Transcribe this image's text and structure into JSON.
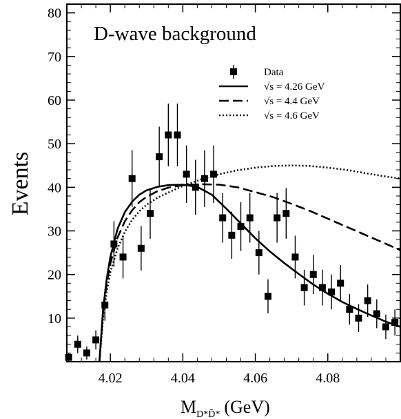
{
  "chart_data": {
    "type": "scatter",
    "title": "D-wave background",
    "xlabel_main": "M",
    "xlabel_subscript": "D*D̄*",
    "xlabel_unit": "(GeV)",
    "ylabel": "Events",
    "xlim": [
      4.008,
      4.1
    ],
    "ylim": [
      0,
      82
    ],
    "xticks": [
      4.02,
      4.04,
      4.06,
      4.08
    ],
    "xtick_labels": [
      "4.02",
      "4.04",
      "4.06",
      "4.08"
    ],
    "yticks": [
      10,
      20,
      30,
      40,
      50,
      60,
      70,
      80
    ],
    "ytick_labels": [
      "10",
      "20",
      "30",
      "40",
      "50",
      "60",
      "70",
      "80"
    ],
    "legend_position": "top-right",
    "data_series": {
      "name": "Data",
      "x": [
        4.0085,
        4.011,
        4.0135,
        4.016,
        4.0185,
        4.021,
        4.0235,
        4.026,
        4.0285,
        4.031,
        4.0335,
        4.036,
        4.0385,
        4.041,
        4.0435,
        4.046,
        4.0485,
        4.051,
        4.0535,
        4.056,
        4.0585,
        4.061,
        4.0635,
        4.066,
        4.0685,
        4.071,
        4.0735,
        4.076,
        4.0785,
        4.081,
        4.0835,
        4.086,
        4.0885,
        4.091,
        4.0935,
        4.096,
        4.0985
      ],
      "y": [
        1,
        4,
        2,
        5,
        13,
        27,
        24,
        42,
        26,
        34,
        47,
        52,
        52,
        43,
        40,
        42,
        43,
        33,
        29,
        31,
        33,
        25,
        15,
        33,
        34,
        24,
        17,
        20,
        17,
        16,
        18,
        12,
        10,
        14,
        11,
        8,
        9
      ],
      "yerr": [
        1,
        2,
        1.5,
        2.2,
        3.6,
        5.2,
        4.9,
        6.5,
        5.1,
        5.8,
        6.9,
        7.2,
        7.2,
        6.6,
        6.3,
        6.5,
        6.6,
        5.7,
        5.4,
        5.6,
        5.7,
        5.0,
        3.9,
        5.7,
        5.8,
        4.9,
        4.1,
        4.5,
        4.1,
        4.0,
        4.2,
        3.5,
        3.2,
        3.7,
        3.3,
        2.8,
        3.0
      ]
    },
    "curves": [
      {
        "name": "√s = 4.26 GeV",
        "style": "solid",
        "x": [
          4.017,
          4.018,
          4.019,
          4.02,
          4.022,
          4.024,
          4.026,
          4.028,
          4.03,
          4.033,
          4.036,
          4.04,
          4.044,
          4.048,
          4.052,
          4.056,
          4.06,
          4.064,
          4.068,
          4.072,
          4.076,
          4.08,
          4.084,
          4.088,
          4.092,
          4.096,
          4.1
        ],
        "y": [
          0,
          12,
          19,
          24,
          30.5,
          34.3,
          36.7,
          38.3,
          39.3,
          40.1,
          40.5,
          40.6,
          40.1,
          38.3,
          35.1,
          31.7,
          28.3,
          25.3,
          22.6,
          20.1,
          17.7,
          15.6,
          13.7,
          12.1,
          10.6,
          9.2,
          8.0
        ]
      },
      {
        "name": "√s = 4.4 GeV",
        "style": "dashed",
        "x": [
          4.017,
          4.018,
          4.019,
          4.02,
          4.022,
          4.024,
          4.026,
          4.028,
          4.03,
          4.033,
          4.036,
          4.04,
          4.045,
          4.05,
          4.055,
          4.06,
          4.065,
          4.07,
          4.075,
          4.08,
          4.085,
          4.09,
          4.095,
          4.1
        ],
        "y": [
          0,
          11.5,
          18,
          22.5,
          28.5,
          32.2,
          34.7,
          36.6,
          37.8,
          39.1,
          39.9,
          40.5,
          40.7,
          40.6,
          40.0,
          38.9,
          37.7,
          36.2,
          34.6,
          32.8,
          31.0,
          29.2,
          27.4,
          25.6
        ]
      },
      {
        "name": "√s = 4.6 GeV",
        "style": "dotted",
        "x": [
          4.017,
          4.018,
          4.019,
          4.02,
          4.022,
          4.024,
          4.026,
          4.028,
          4.03,
          4.033,
          4.036,
          4.04,
          4.045,
          4.05,
          4.055,
          4.06,
          4.065,
          4.07,
          4.075,
          4.08,
          4.085,
          4.09,
          4.095,
          4.1
        ],
        "y": [
          0,
          10,
          16,
          20.5,
          26,
          29.8,
          32.5,
          34.5,
          36.0,
          37.6,
          38.8,
          40.3,
          41.8,
          43.0,
          43.9,
          44.5,
          44.9,
          45.0,
          44.9,
          44.5,
          44.0,
          43.3,
          42.6,
          42.0
        ]
      }
    ]
  }
}
